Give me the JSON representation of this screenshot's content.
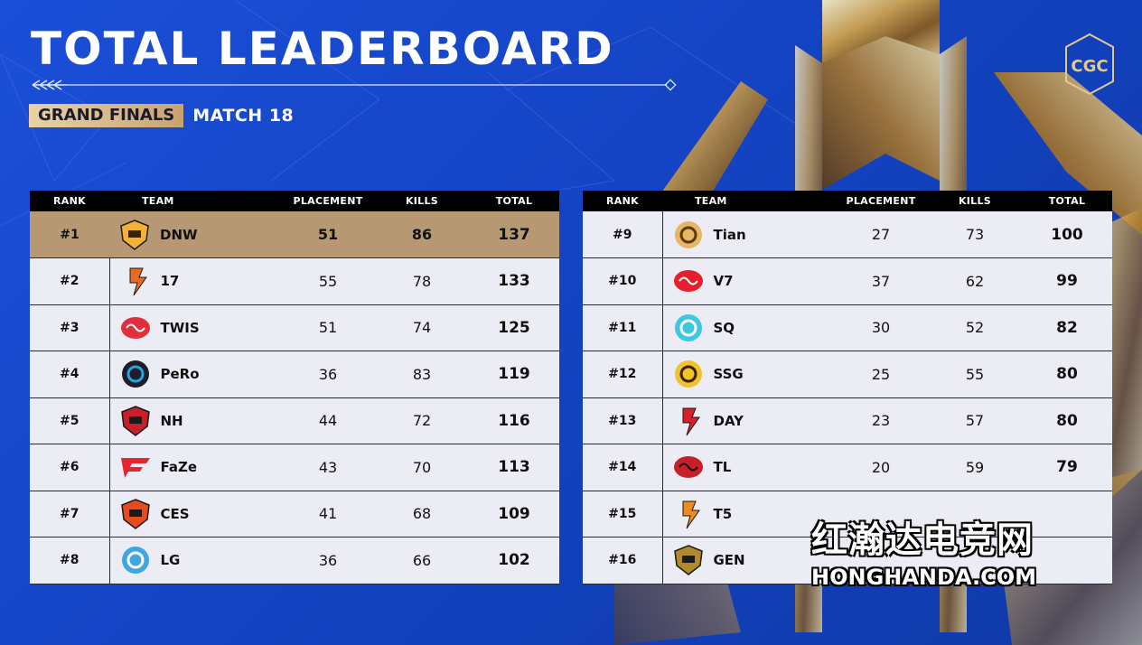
{
  "header": {
    "title": "TOTAL LEADERBOARD",
    "stage": "GRAND FINALS",
    "match": "MATCH 18",
    "logo_text": "CGC"
  },
  "columns": {
    "rank": "RANK",
    "team": "TEAM",
    "placement": "PLACEMENT",
    "kills": "KILLS",
    "total": "TOTAL"
  },
  "colors": {
    "background": "#1444c4",
    "header_row": "#000000",
    "first_place_row": "#b69872",
    "row": "#ececf5",
    "badge_gold": "#d9bb8a"
  },
  "left_table": [
    {
      "rank": "#1",
      "team": "DNW",
      "logo": "dnw-logo",
      "placement": "51",
      "kills": "86",
      "total": "137"
    },
    {
      "rank": "#2",
      "team": "17",
      "logo": "17-gaming-logo",
      "placement": "55",
      "kills": "78",
      "total": "133"
    },
    {
      "rank": "#3",
      "team": "TWIS",
      "logo": "twis-logo",
      "placement": "51",
      "kills": "74",
      "total": "125"
    },
    {
      "rank": "#4",
      "team": "PeRo",
      "logo": "pero-logo",
      "placement": "36",
      "kills": "83",
      "total": "119"
    },
    {
      "rank": "#5",
      "team": "NH",
      "logo": "nh-logo",
      "placement": "44",
      "kills": "72",
      "total": "116"
    },
    {
      "rank": "#6",
      "team": "FaZe",
      "logo": "faze-logo",
      "placement": "43",
      "kills": "70",
      "total": "113"
    },
    {
      "rank": "#7",
      "team": "CES",
      "logo": "ces-logo",
      "placement": "41",
      "kills": "68",
      "total": "109"
    },
    {
      "rank": "#8",
      "team": "LG",
      "logo": "lg-logo",
      "placement": "36",
      "kills": "66",
      "total": "102"
    }
  ],
  "right_table": [
    {
      "rank": "#9",
      "team": "Tian",
      "logo": "tian-logo",
      "placement": "27",
      "kills": "73",
      "total": "100"
    },
    {
      "rank": "#10",
      "team": "V7",
      "logo": "v7-logo",
      "placement": "37",
      "kills": "62",
      "total": "99"
    },
    {
      "rank": "#11",
      "team": "SQ",
      "logo": "sq-logo",
      "placement": "30",
      "kills": "52",
      "total": "82"
    },
    {
      "rank": "#12",
      "team": "SSG",
      "logo": "ssg-logo",
      "placement": "25",
      "kills": "55",
      "total": "80"
    },
    {
      "rank": "#13",
      "team": "DAY",
      "logo": "day-logo",
      "placement": "23",
      "kills": "57",
      "total": "80"
    },
    {
      "rank": "#14",
      "team": "TL",
      "logo": "tl-logo",
      "placement": "20",
      "kills": "59",
      "total": "79"
    },
    {
      "rank": "#15",
      "team": "T5",
      "logo": "t5-logo",
      "placement": "",
      "kills": "",
      "total": ""
    },
    {
      "rank": "#16",
      "team": "GEN",
      "logo": "gen-logo",
      "placement": "",
      "kills": "",
      "total": ""
    }
  ],
  "watermark": {
    "cn": "红瀚达电竞网",
    "en": "HONGHANDA.COM"
  }
}
